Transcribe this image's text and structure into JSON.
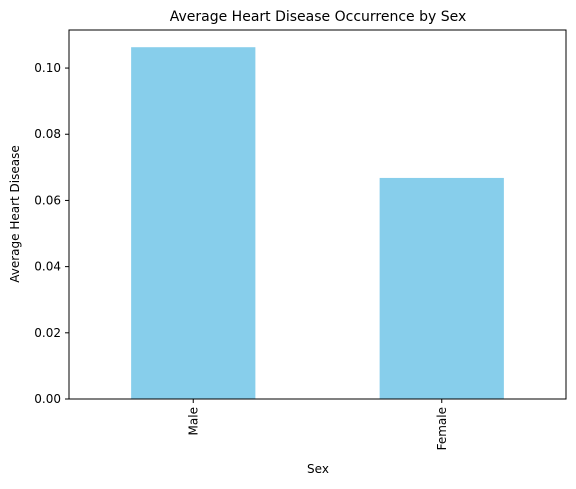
{
  "chart_data": {
    "type": "bar",
    "title": "Average Heart Disease Occurrence by Sex",
    "xlabel": "Sex",
    "ylabel": "Average Heart Disease",
    "categories": [
      "Male",
      "Female"
    ],
    "values": [
      0.1063,
      0.0668
    ],
    "ylim": [
      0,
      0.1115
    ],
    "yticks": [
      0,
      0.02,
      0.04,
      0.06,
      0.08,
      0.1
    ],
    "ytick_labels": [
      "0.00",
      "0.02",
      "0.04",
      "0.06",
      "0.08",
      "0.10"
    ],
    "grid": false,
    "legend": "none",
    "bar_color": "#87CEEB"
  }
}
